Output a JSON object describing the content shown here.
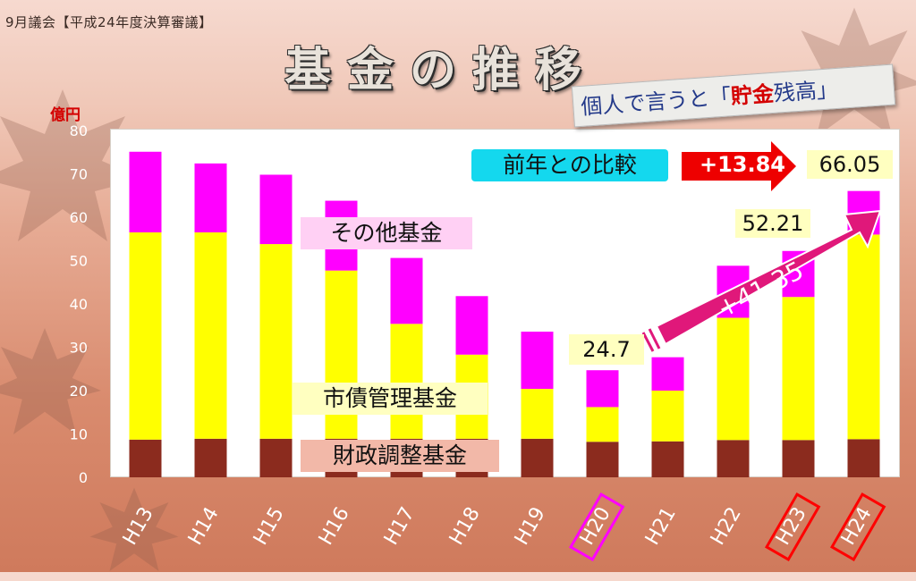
{
  "header": {
    "session": "9月議会【平成24年度決算審議】"
  },
  "title": "基金の推移",
  "note": {
    "prefix": "個人で言うと「",
    "highlight": "貯金",
    "suffix": "残高」"
  },
  "comparison": {
    "label": "前年との比較",
    "change": "+13.84"
  },
  "growth_label": "+41.35",
  "value_labels": {
    "H20": "24.7",
    "H23": "52.21",
    "H24": "66.05"
  },
  "legend_labels": {
    "other": "その他基金",
    "bond": "市債管理基金",
    "adjust": "財政調整基金"
  },
  "colors": {
    "adjust": "#8b2b1e",
    "bond": "#ffff00",
    "other": "#ff00ff",
    "change_arrow": "#ee0000",
    "growth_arrow": "#e0187a",
    "comparison_box": "#14d8ee"
  },
  "chart_data": {
    "type": "bar",
    "stacked": true,
    "categories": [
      "H13",
      "H14",
      "H15",
      "H16",
      "H17",
      "H18",
      "H19",
      "H20",
      "H21",
      "H22",
      "H23",
      "H24"
    ],
    "series": [
      {
        "name": "財政調整基金",
        "values": [
          8.7,
          8.9,
          8.9,
          8.9,
          8.9,
          8.9,
          8.9,
          8.2,
          8.3,
          8.6,
          8.6,
          8.8
        ]
      },
      {
        "name": "市債管理基金",
        "values": [
          47.8,
          47.6,
          44.9,
          38.8,
          26.5,
          19.4,
          11.5,
          8.0,
          11.7,
          28.2,
          33.0,
          47.2
        ]
      },
      {
        "name": "その他基金",
        "values": [
          18.6,
          15.9,
          16.0,
          16.1,
          15.2,
          13.5,
          13.2,
          8.5,
          7.7,
          12.0,
          10.61,
          10.05
        ]
      }
    ],
    "ylabel": "億円",
    "yticks": [
      "0",
      "10",
      "20",
      "30",
      "40",
      "50",
      "60",
      "70",
      "80"
    ],
    "ylim": [
      0,
      80
    ],
    "highlighted_categories": {
      "H20": "#ff00ff",
      "H23": "#ff0000",
      "H24": "#ff0000"
    }
  }
}
